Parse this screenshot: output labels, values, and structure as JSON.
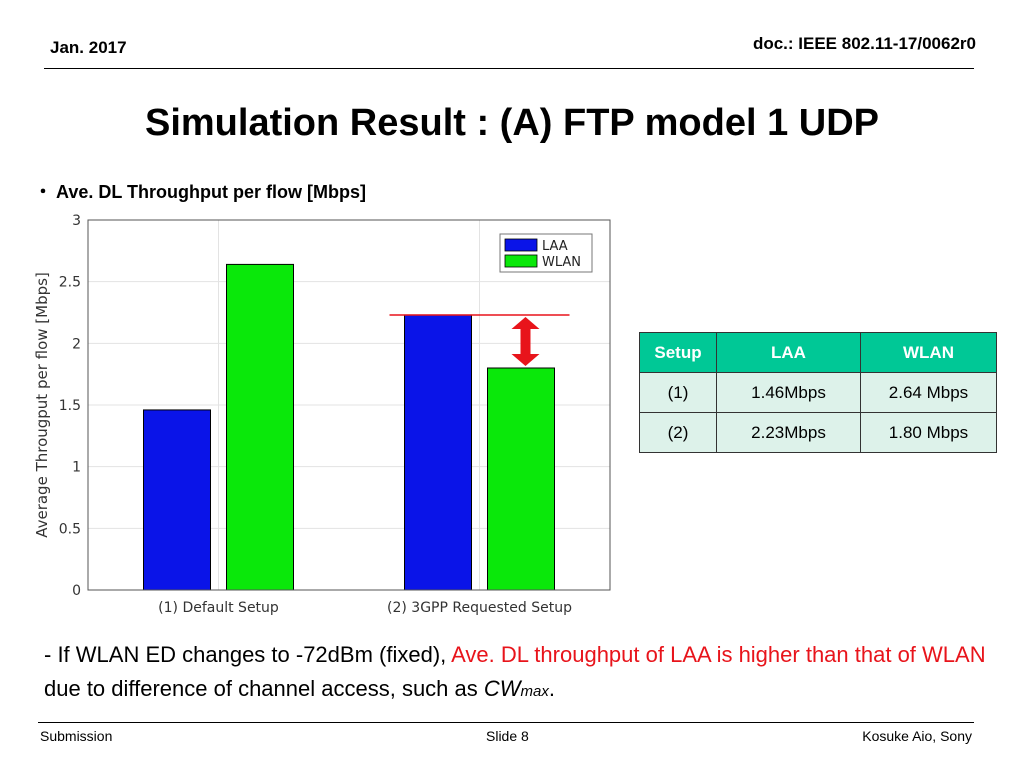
{
  "header": {
    "date": "Jan. 2017",
    "doc_id": "doc.: IEEE 802.11-17/0062r0"
  },
  "title": "Simulation Result : (A) FTP model 1 UDP",
  "bullet": {
    "marker": "・",
    "text": "Ave. DL Throughput per flow [Mbps]"
  },
  "chart_data": {
    "type": "bar",
    "categories": [
      "(1) Default Setup",
      "(2) 3GPP Requested Setup"
    ],
    "series": [
      {
        "name": "LAA",
        "values": [
          1.46,
          2.23
        ],
        "color": "#0a14e8"
      },
      {
        "name": "WLAN",
        "values": [
          2.64,
          1.8
        ],
        "color": "#0ae80a"
      }
    ],
    "ylabel": "Average Througput per flow [Mbps]",
    "xlabel": "",
    "ylim": [
      0,
      3
    ],
    "yticks": [
      "0",
      "0.5",
      "1",
      "1.5",
      "2",
      "2.5",
      "3"
    ],
    "grid": true,
    "legend_position": "top-right",
    "annotation": {
      "type": "double-arrow",
      "category": "(2) 3GPP Requested Setup",
      "from": 1.8,
      "to": 2.23,
      "color": "#e8141b"
    }
  },
  "table": {
    "headers": [
      "Setup",
      "LAA",
      "WLAN"
    ],
    "rows": [
      [
        "(1)",
        "1.46Mbps",
        "2.64 Mbps"
      ],
      [
        "(2)",
        "2.23Mbps",
        "1.80 Mbps"
      ]
    ]
  },
  "note": {
    "part1": "- If WLAN ED changes to -72dBm (fixed), ",
    "part2_red": "Ave. DL throughput of LAA is higher than that of WLAN",
    "part3": " due to difference of channel access, such as ",
    "cw": "CW",
    "cw_sub": "max",
    "end": "."
  },
  "footer": {
    "left": "Submission",
    "center": "Slide 8",
    "right": "Kosuke Aio, Sony"
  }
}
